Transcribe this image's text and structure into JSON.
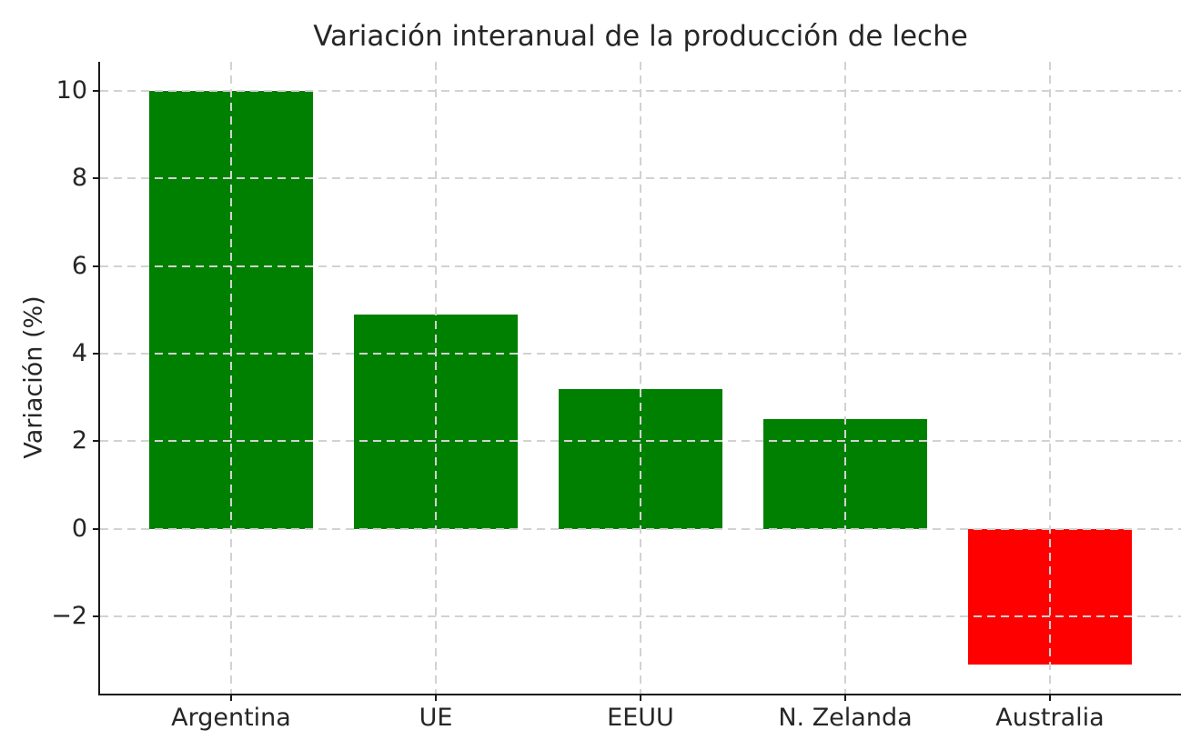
{
  "figure": {
    "background": "#ffffff"
  },
  "chart_data": {
    "type": "bar",
    "title": "Variación interanual de la producción de leche",
    "xlabel": "",
    "ylabel": "Variación (%)",
    "categories": [
      "Argentina",
      "UE",
      "EEUU",
      "N. Zelanda",
      "Australia"
    ],
    "values": [
      10.0,
      4.9,
      3.2,
      2.5,
      -3.1
    ],
    "bar_colors": [
      "#008000",
      "#008000",
      "#008000",
      "#008000",
      "#ff0000"
    ],
    "positive_color": "#008000",
    "negative_color": "#ff0000",
    "yticks": [
      10,
      8,
      6,
      4,
      2,
      0,
      -2
    ],
    "ylim": [
      -3.755,
      10.655
    ],
    "xlim": [
      -0.64,
      4.64
    ],
    "bar_width": 0.8,
    "grid": "on",
    "grid_style": "dashed",
    "grid_color": "#d2d2d2",
    "legend_position": "none",
    "axis_color": "#1a1a1a",
    "text_color": "#262626"
  }
}
